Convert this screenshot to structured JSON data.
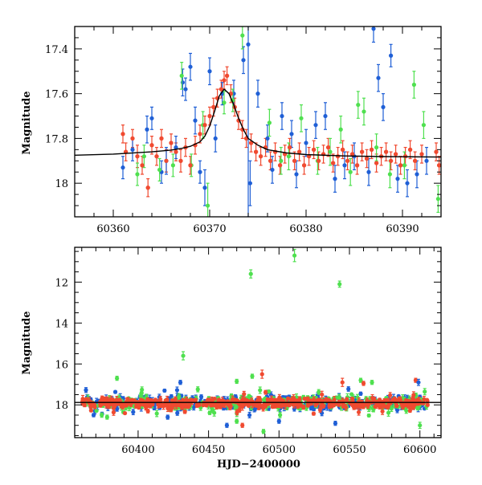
{
  "chart_data": [
    {
      "type": "scatter",
      "title": "",
      "xlabel": "",
      "ylabel": "Magnitude",
      "xlim": [
        60356,
        60394
      ],
      "ylim": [
        17.3,
        18.15
      ],
      "y_inverted": true,
      "x_ticks": [
        60360,
        60370,
        60380,
        60390
      ],
      "y_ticks": [
        17.4,
        17.6,
        17.8,
        18
      ],
      "series_colors": {
        "red": "#f04a30",
        "blue": "#1f5fd6",
        "green": "#4fe04f"
      },
      "model_curve": {
        "color": "#000000",
        "x": [
          60356,
          60360,
          60364,
          60366,
          60367,
          60368,
          60369,
          60369.5,
          60370,
          60370.5,
          60371,
          60371.5,
          60372,
          60372.5,
          60373,
          60373.5,
          60374,
          60375,
          60376,
          60378,
          60380,
          60384,
          60388,
          60394
        ],
        "y": [
          17.875,
          17.87,
          17.86,
          17.852,
          17.845,
          17.835,
          17.815,
          17.79,
          17.745,
          17.68,
          17.61,
          17.58,
          17.6,
          17.65,
          17.71,
          17.76,
          17.8,
          17.83,
          17.85,
          17.865,
          17.872,
          17.878,
          17.881,
          17.883
        ]
      },
      "series": [
        {
          "color_key": "red",
          "points": [
            [
              60361,
              17.78,
              0.04
            ],
            [
              60361.3,
              17.86,
              0.04
            ],
            [
              60362,
              17.8,
              0.04
            ],
            [
              60362.5,
              17.88,
              0.05
            ],
            [
              60363,
              17.92,
              0.04
            ],
            [
              60363.6,
              18.02,
              0.04
            ],
            [
              60364,
              17.83,
              0.04
            ],
            [
              60364.5,
              17.88,
              0.04
            ],
            [
              60365,
              17.8,
              0.04
            ],
            [
              60365.5,
              17.9,
              0.05
            ],
            [
              60366,
              17.82,
              0.04
            ],
            [
              60366.5,
              17.86,
              0.04
            ],
            [
              60367,
              17.9,
              0.05
            ],
            [
              60367.5,
              17.84,
              0.04
            ],
            [
              60368,
              17.92,
              0.04
            ],
            [
              60368.5,
              17.83,
              0.04
            ],
            [
              60369,
              17.78,
              0.04
            ],
            [
              60369.5,
              17.74,
              0.04
            ],
            [
              60370,
              17.7,
              0.04
            ],
            [
              60370.4,
              17.66,
              0.04
            ],
            [
              60370.8,
              17.62,
              0.04
            ],
            [
              60371.2,
              17.58,
              0.04
            ],
            [
              60371.5,
              17.54,
              0.04
            ],
            [
              60371.8,
              17.52,
              0.04
            ],
            [
              60372.2,
              17.6,
              0.04
            ],
            [
              60372.6,
              17.66,
              0.04
            ],
            [
              60373,
              17.72,
              0.04
            ],
            [
              60373.4,
              17.76,
              0.04
            ],
            [
              60373.8,
              17.8,
              0.04
            ],
            [
              60374.3,
              17.82,
              0.04
            ],
            [
              60374.8,
              17.86,
              0.04
            ],
            [
              60375.3,
              17.88,
              0.04
            ],
            [
              60375.8,
              17.84,
              0.04
            ],
            [
              60376.3,
              17.9,
              0.04
            ],
            [
              60376.8,
              17.86,
              0.04
            ],
            [
              60377.3,
              17.92,
              0.04
            ],
            [
              60377.8,
              17.87,
              0.04
            ],
            [
              60378.3,
              17.84,
              0.04
            ],
            [
              60378.8,
              17.9,
              0.04
            ],
            [
              60379.3,
              17.86,
              0.04
            ],
            [
              60379.8,
              17.92,
              0.04
            ],
            [
              60380.3,
              17.88,
              0.04
            ],
            [
              60380.8,
              17.85,
              0.04
            ],
            [
              60381.3,
              17.9,
              0.04
            ],
            [
              60381.8,
              17.87,
              0.04
            ],
            [
              60382.3,
              17.84,
              0.04
            ],
            [
              60382.8,
              17.91,
              0.04
            ],
            [
              60383.3,
              17.88,
              0.04
            ],
            [
              60383.8,
              17.85,
              0.04
            ],
            [
              60384.3,
              17.9,
              0.04
            ],
            [
              60384.8,
              17.87,
              0.04
            ],
            [
              60385.3,
              17.92,
              0.04
            ],
            [
              60385.8,
              17.86,
              0.04
            ],
            [
              60386.3,
              17.89,
              0.04
            ],
            [
              60386.8,
              17.85,
              0.04
            ],
            [
              60387.3,
              17.91,
              0.04
            ],
            [
              60387.8,
              17.88,
              0.04
            ],
            [
              60388.3,
              17.86,
              0.04
            ],
            [
              60388.8,
              17.9,
              0.04
            ],
            [
              60389.3,
              17.87,
              0.04
            ],
            [
              60389.8,
              17.92,
              0.04
            ],
            [
              60390.3,
              17.88,
              0.04
            ],
            [
              60390.8,
              17.85,
              0.04
            ],
            [
              60391.3,
              17.9,
              0.04
            ],
            [
              60392,
              17.87,
              0.04
            ],
            [
              60393.5,
              17.86,
              0.04
            ],
            [
              60393.8,
              17.92,
              0.04
            ]
          ]
        },
        {
          "color_key": "blue",
          "points": [
            [
              60361,
              17.93,
              0.05
            ],
            [
              60362,
              17.85,
              0.05
            ],
            [
              60363.5,
              17.76,
              0.06
            ],
            [
              60364,
              17.71,
              0.05
            ],
            [
              60365,
              17.95,
              0.05
            ],
            [
              60365.5,
              17.9,
              0.06
            ],
            [
              60366.5,
              17.84,
              0.05
            ],
            [
              60367.2,
              17.55,
              0.06
            ],
            [
              60367.5,
              17.58,
              0.05
            ],
            [
              60368,
              17.48,
              0.06
            ],
            [
              60368.5,
              17.72,
              0.06
            ],
            [
              60369,
              17.95,
              0.05
            ],
            [
              60369.5,
              18.02,
              0.08
            ],
            [
              60370,
              17.5,
              0.06
            ],
            [
              60370.6,
              17.8,
              0.06
            ],
            [
              60371.3,
              17.6,
              0.05
            ],
            [
              60372.5,
              17.6,
              0.06
            ],
            [
              60373.5,
              17.45,
              0.06
            ],
            [
              60374,
              17.38,
              0.9
            ],
            [
              60374.2,
              18.0,
              0.1
            ],
            [
              60375,
              17.6,
              0.06
            ],
            [
              60376,
              17.8,
              0.06
            ],
            [
              60376.5,
              17.94,
              0.06
            ],
            [
              60377.5,
              17.7,
              0.06
            ],
            [
              60378.5,
              17.78,
              0.06
            ],
            [
              60379,
              17.96,
              0.06
            ],
            [
              60380,
              17.82,
              0.06
            ],
            [
              60381,
              17.74,
              0.06
            ],
            [
              60382,
              17.7,
              0.06
            ],
            [
              60383,
              17.98,
              0.06
            ],
            [
              60384,
              17.92,
              0.06
            ],
            [
              60385,
              17.88,
              0.06
            ],
            [
              60386.5,
              17.95,
              0.06
            ],
            [
              60387,
              17.31,
              0.06
            ],
            [
              60387.5,
              17.53,
              0.06
            ],
            [
              60388,
              17.66,
              0.06
            ],
            [
              60388.8,
              17.43,
              0.05
            ],
            [
              60389.5,
              17.98,
              0.06
            ],
            [
              60390.5,
              18.0,
              0.06
            ],
            [
              60391.5,
              17.96,
              0.06
            ],
            [
              60392.5,
              17.9,
              0.06
            ]
          ]
        },
        {
          "color_key": "green",
          "points": [
            [
              60362.5,
              17.96,
              0.05
            ],
            [
              60363.2,
              17.88,
              0.05
            ],
            [
              60364.8,
              17.94,
              0.05
            ],
            [
              60366.2,
              17.92,
              0.05
            ],
            [
              60367.1,
              17.52,
              0.06
            ],
            [
              60368.1,
              17.92,
              0.05
            ],
            [
              60369.3,
              17.74,
              0.06
            ],
            [
              60369.8,
              18.1,
              0.1
            ],
            [
              60371.5,
              17.64,
              0.05
            ],
            [
              60372.4,
              17.63,
              0.05
            ],
            [
              60373.4,
              17.34,
              0.06
            ],
            [
              60376.2,
              17.73,
              0.06
            ],
            [
              60377.4,
              17.9,
              0.06
            ],
            [
              60378.2,
              17.88,
              0.06
            ],
            [
              60379.5,
              17.71,
              0.06
            ],
            [
              60381.2,
              17.9,
              0.06
            ],
            [
              60382.5,
              17.86,
              0.06
            ],
            [
              60383.6,
              17.76,
              0.06
            ],
            [
              60384.6,
              17.95,
              0.06
            ],
            [
              60385.4,
              17.65,
              0.06
            ],
            [
              60386,
              17.68,
              0.06
            ],
            [
              60387.3,
              17.84,
              0.06
            ],
            [
              60388.7,
              17.96,
              0.06
            ],
            [
              60390.2,
              17.92,
              0.06
            ],
            [
              60391.2,
              17.56,
              0.06
            ],
            [
              60392.2,
              17.74,
              0.06
            ],
            [
              60393.7,
              18.07,
              0.06
            ]
          ]
        }
      ]
    },
    {
      "type": "scatter",
      "title": "",
      "xlabel": "HJD−2400000",
      "ylabel": "Magnitude",
      "xlim": [
        60355,
        60615
      ],
      "ylim": [
        10.3,
        19.6
      ],
      "y_inverted": true,
      "x_ticks": [
        60400,
        60450,
        60500,
        60550,
        60600
      ],
      "y_ticks": [
        12,
        14,
        16,
        18
      ],
      "series_colors": {
        "red": "#f04a30",
        "blue": "#1f5fd6",
        "green": "#4fe04f"
      },
      "reference_line": {
        "y": 17.88,
        "color": "#000000"
      },
      "band": {
        "x_start": 60360,
        "x_end": 60606,
        "center": 17.9
      },
      "outliers": {
        "green": [
          [
            60385,
            16.7,
            0.1
          ],
          [
            60432,
            15.6,
            0.2
          ],
          [
            60470,
            16.85,
            0.1
          ],
          [
            60480,
            11.6,
            0.2
          ],
          [
            60511,
            10.7,
            0.3
          ],
          [
            60543,
            12.1,
            0.15
          ],
          [
            60558,
            16.8,
            0.1
          ],
          [
            60470,
            18.8,
            0.1
          ],
          [
            60481,
            16.6,
            0.1
          ],
          [
            60378,
            18.6,
            0.1
          ],
          [
            60600,
            19.0,
            0.15
          ],
          [
            60489,
            19.3,
            0.1
          ],
          [
            60566,
            16.9,
            0.1
          ]
        ],
        "red": [
          [
            60488,
            16.5,
            0.2
          ],
          [
            60545,
            16.9,
            0.2
          ],
          [
            60597,
            16.8,
            0.1
          ],
          [
            60474,
            19.0,
            0.1
          ],
          [
            60560,
            16.95,
            0.1
          ]
        ],
        "blue": [
          [
            60430,
            16.9,
            0.1
          ],
          [
            60599,
            16.9,
            0.15
          ],
          [
            60463,
            19.0,
            0.1
          ],
          [
            60500,
            18.8,
            0.1
          ],
          [
            60421,
            18.6,
            0.1
          ],
          [
            60540,
            18.9,
            0.1
          ]
        ]
      }
    }
  ]
}
